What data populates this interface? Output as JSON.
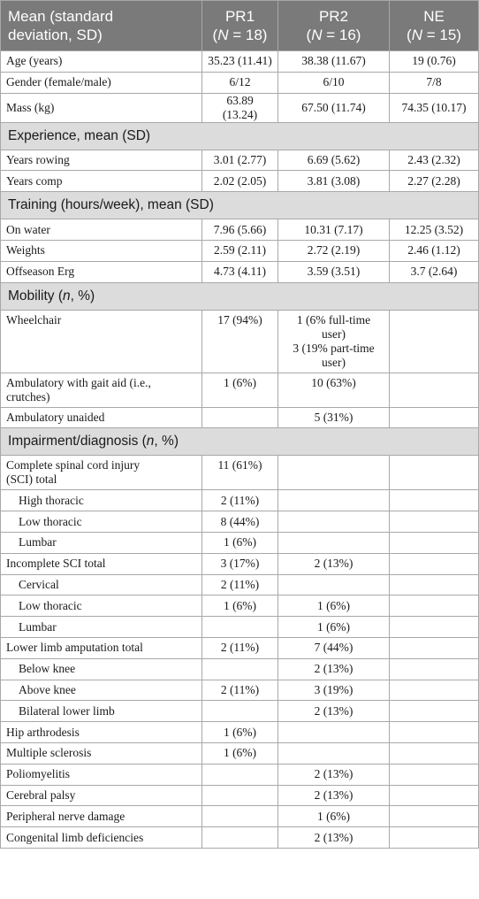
{
  "header": {
    "col1_line1": "Mean",
    "col1_line1_b": "(standard",
    "col1_line2": "deviation, SD)",
    "groups": [
      {
        "name": "PR1",
        "n_label": "N",
        "n_value": " = 18)"
      },
      {
        "name": "PR2",
        "n_label": "N",
        "n_value": " = 16)"
      },
      {
        "name": "NE",
        "n_label": "N",
        "n_value": " = 15)"
      }
    ]
  },
  "demographics": [
    {
      "label": "Age (years)",
      "pr1": "35.23 (11.41)",
      "pr2": "38.38 (11.67)",
      "ne": "19 (0.76)"
    },
    {
      "label": "Gender (female/male)",
      "pr1": "6/12",
      "pr2": "6/10",
      "ne": "7/8"
    },
    {
      "label": "Mass (kg)",
      "pr1": "63.89 (13.24)",
      "pr2": "67.50 (11.74)",
      "ne": "74.35 (10.17)"
    }
  ],
  "experience": {
    "title": "Experience, mean (SD)",
    "rows": [
      {
        "label": "Years rowing",
        "pr1": "3.01 (2.77)",
        "pr2": "6.69 (5.62)",
        "ne": "2.43 (2.32)"
      },
      {
        "label": "Years comp",
        "pr1": "2.02 (2.05)",
        "pr2": "3.81 (3.08)",
        "ne": "2.27 (2.28)"
      }
    ]
  },
  "training": {
    "title": "Training (hours/week), mean (SD)",
    "rows": [
      {
        "label": "On water",
        "pr1": "7.96 (5.66)",
        "pr2": "10.31 (7.17)",
        "ne": "12.25 (3.52)"
      },
      {
        "label": "Weights",
        "pr1": "2.59 (2.11)",
        "pr2": "2.72 (2.19)",
        "ne": "2.46 (1.12)"
      },
      {
        "label": "Offseason Erg",
        "pr1": "4.73 (4.11)",
        "pr2": "3.59 (3.51)",
        "ne": "3.7 (2.64)"
      }
    ]
  },
  "mobility": {
    "title_a": "Mobility (",
    "title_n": "n",
    "title_b": ", %)",
    "wheelchair": {
      "label": "Wheelchair",
      "pr1": "17 (94%)",
      "pr2_line1": "1 (6% full-time",
      "pr2_line2": "user)",
      "pr2_line3": "3 (19% part-time",
      "pr2_line4": "user)",
      "ne": ""
    },
    "gait_aid": {
      "label_line1": "Ambulatory with gait aid (i.e.,",
      "label_line2": "crutches)",
      "pr1": "1 (6%)",
      "pr2": "10 (63%)",
      "ne": ""
    },
    "unaided": {
      "label": "Ambulatory unaided",
      "pr1": "",
      "pr2": "5 (31%)",
      "ne": ""
    }
  },
  "impairment": {
    "title_a": "Impairment/diagnosis (",
    "title_n": "n",
    "title_b": ", %)",
    "complete_sci": {
      "label_line1": "Complete spinal cord injury",
      "label_line2": "(SCI) total",
      "pr1": "11 (61%)",
      "pr2": "",
      "ne": ""
    },
    "rows": [
      {
        "label": "High thoracic",
        "indent": true,
        "pr1": "2 (11%)",
        "pr2": "",
        "ne": ""
      },
      {
        "label": "Low thoracic",
        "indent": true,
        "pr1": "8 (44%)",
        "pr2": "",
        "ne": ""
      },
      {
        "label": "Lumbar",
        "indent": true,
        "pr1": "1 (6%)",
        "pr2": "",
        "ne": ""
      },
      {
        "label": "Incomplete SCI total",
        "indent": false,
        "pr1": "3 (17%)",
        "pr2": "2 (13%)",
        "ne": ""
      },
      {
        "label": "Cervical",
        "indent": true,
        "pr1": "2 (11%)",
        "pr2": "",
        "ne": ""
      },
      {
        "label": "Low thoracic",
        "indent": true,
        "pr1": "1 (6%)",
        "pr2": "1 (6%)",
        "ne": ""
      },
      {
        "label": "Lumbar",
        "indent": true,
        "pr1": "",
        "pr2": "1 (6%)",
        "ne": ""
      },
      {
        "label": "Lower limb amputation total",
        "indent": false,
        "pr1": "2 (11%)",
        "pr2": "7 (44%)",
        "ne": ""
      },
      {
        "label": "Below knee",
        "indent": true,
        "pr1": "",
        "pr2": "2 (13%)",
        "ne": ""
      },
      {
        "label": "Above knee",
        "indent": true,
        "pr1": "2 (11%)",
        "pr2": "3 (19%)",
        "ne": ""
      },
      {
        "label": "Bilateral lower limb",
        "indent": true,
        "pr1": "",
        "pr2": "2 (13%)",
        "ne": ""
      },
      {
        "label": "Hip arthrodesis",
        "indent": false,
        "pr1": "1 (6%)",
        "pr2": "",
        "ne": ""
      },
      {
        "label": "Multiple sclerosis",
        "indent": false,
        "pr1": "1 (6%)",
        "pr2": "",
        "ne": ""
      },
      {
        "label": "Poliomyelitis",
        "indent": false,
        "pr1": "",
        "pr2": "2 (13%)",
        "ne": ""
      },
      {
        "label": "Cerebral palsy",
        "indent": false,
        "pr1": "",
        "pr2": "2 (13%)",
        "ne": ""
      },
      {
        "label": "Peripheral nerve damage",
        "indent": false,
        "pr1": "",
        "pr2": "1 (6%)",
        "ne": ""
      },
      {
        "label": "Congenital limb deficiencies",
        "indent": false,
        "pr1": "",
        "pr2": "2 (13%)",
        "ne": ""
      }
    ]
  }
}
